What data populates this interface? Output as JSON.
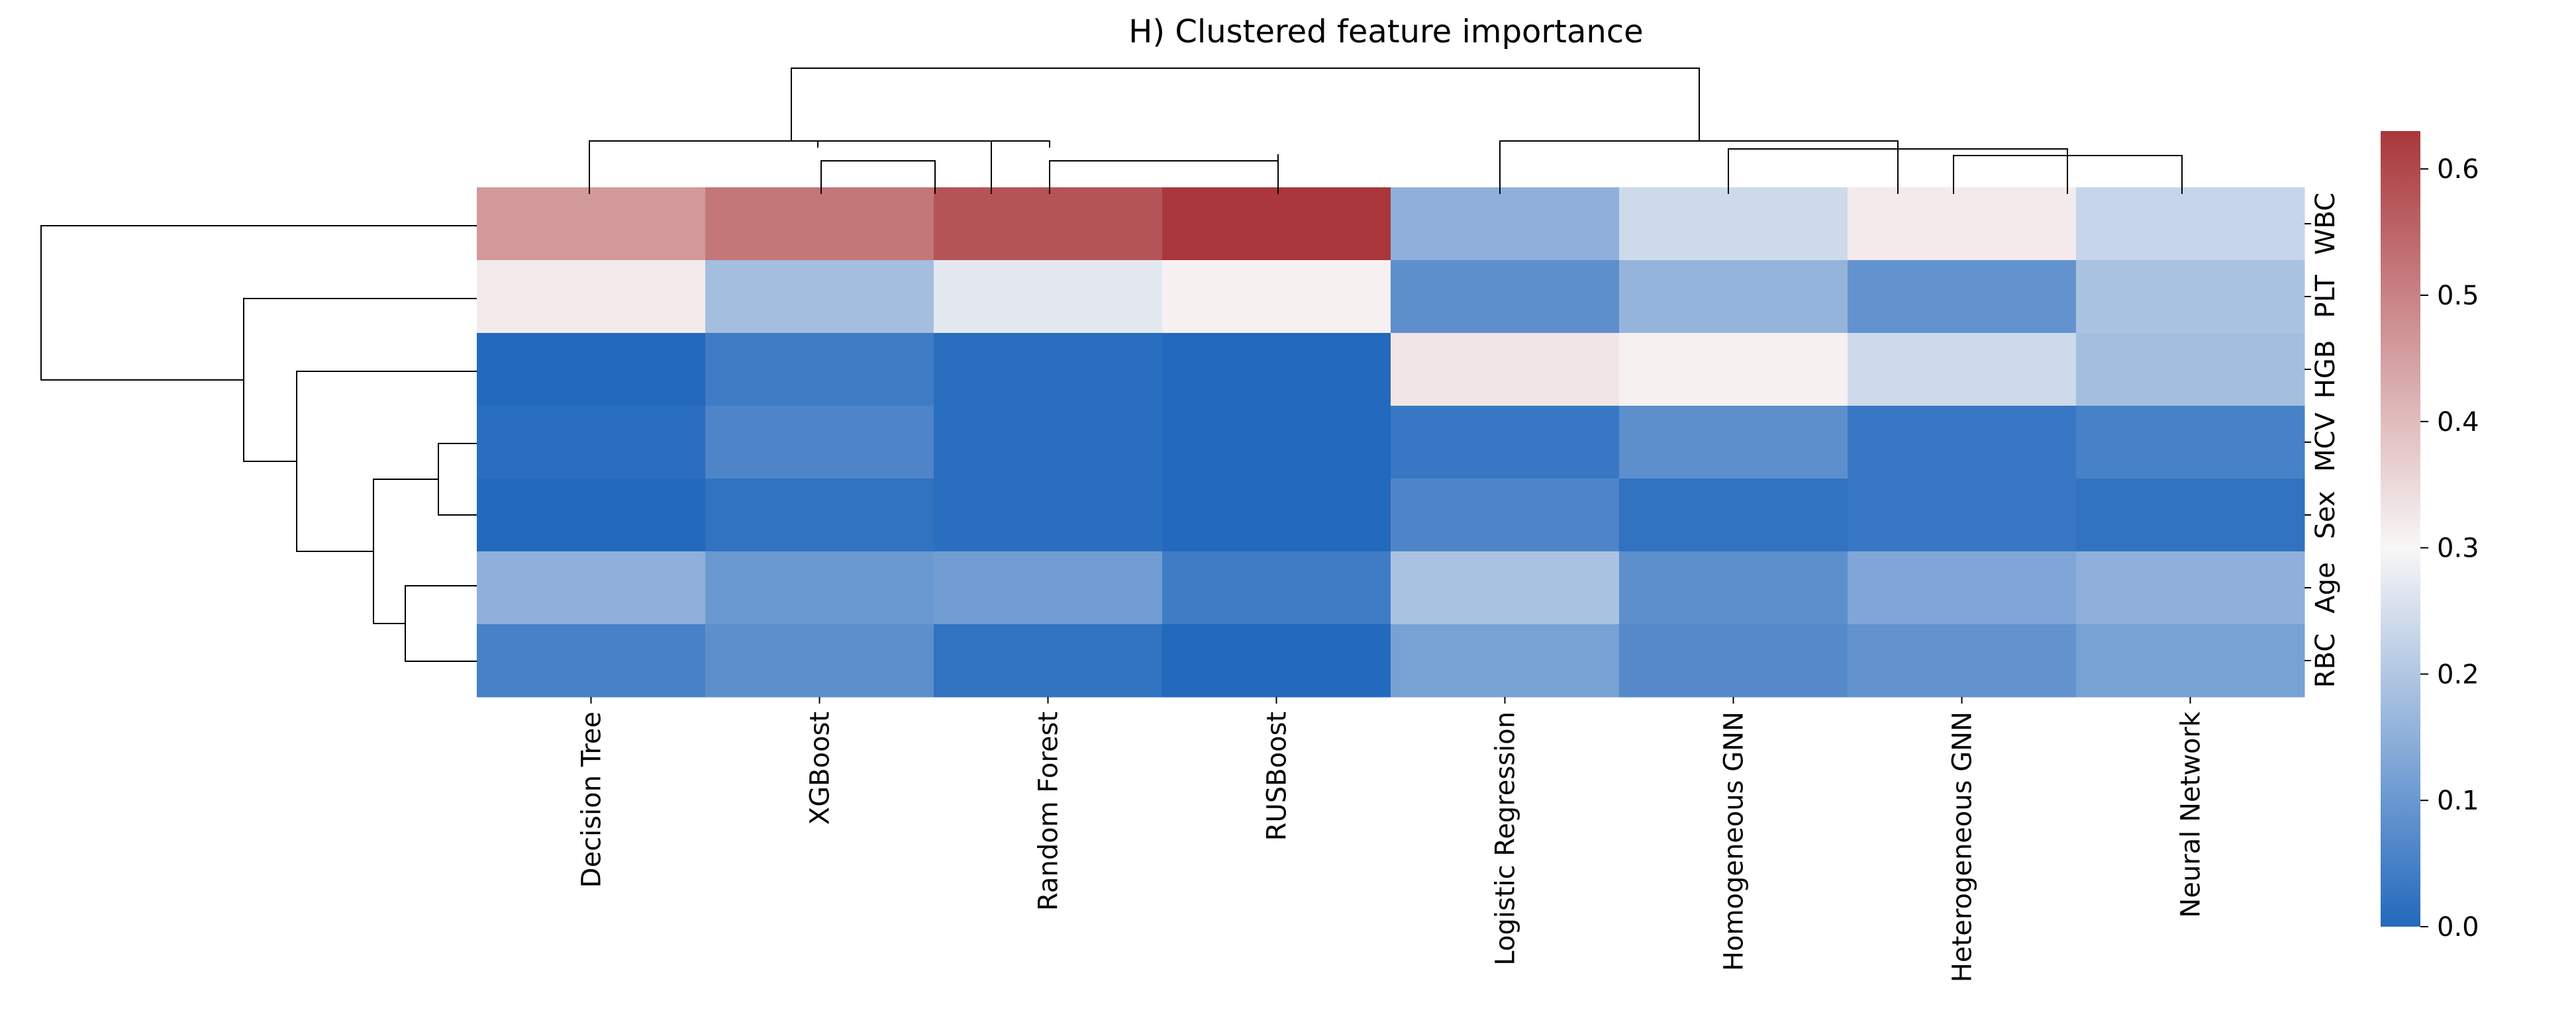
{
  "chart_data": {
    "type": "heatmap",
    "title": "H) Clustered feature importance",
    "xlabel": "",
    "ylabel": "",
    "columns": [
      "Decision Tree",
      "XGBoost",
      "Random Forest",
      "RUSBoost",
      "Logistic Regression",
      "Homogeneous GNN",
      "Heterogeneous GNN",
      "Neural Network"
    ],
    "rows": [
      "WBC",
      "PLT",
      "HGB",
      "MCV",
      "Sex",
      "Age",
      "RBC"
    ],
    "values": [
      [
        0.46,
        0.52,
        0.58,
        0.63,
        0.15,
        0.24,
        0.32,
        0.23
      ],
      [
        0.32,
        0.18,
        0.27,
        0.31,
        0.08,
        0.16,
        0.09,
        0.19
      ],
      [
        0.0,
        0.04,
        0.01,
        0.0,
        0.33,
        0.31,
        0.24,
        0.18
      ],
      [
        0.01,
        0.06,
        0.01,
        0.0,
        0.03,
        0.08,
        0.03,
        0.05
      ],
      [
        0.0,
        0.02,
        0.01,
        0.0,
        0.06,
        0.02,
        0.03,
        0.02
      ],
      [
        0.15,
        0.1,
        0.11,
        0.04,
        0.19,
        0.08,
        0.13,
        0.15
      ],
      [
        0.05,
        0.08,
        0.02,
        0.0,
        0.12,
        0.07,
        0.09,
        0.12
      ]
    ],
    "colorbar": {
      "min": 0.0,
      "max": 0.63,
      "ticks": [
        0.0,
        0.1,
        0.2,
        0.3,
        0.4,
        0.5,
        0.6
      ],
      "tick_labels": [
        "0.0",
        "0.1",
        "0.2",
        "0.3",
        "0.4",
        "0.5",
        "0.6"
      ],
      "colormap": "vlag",
      "low_color": "#2369bd",
      "mid_color": "#f8f6f6",
      "high_color": "#a9373b"
    },
    "column_dendrogram": true,
    "row_dendrogram": true
  }
}
